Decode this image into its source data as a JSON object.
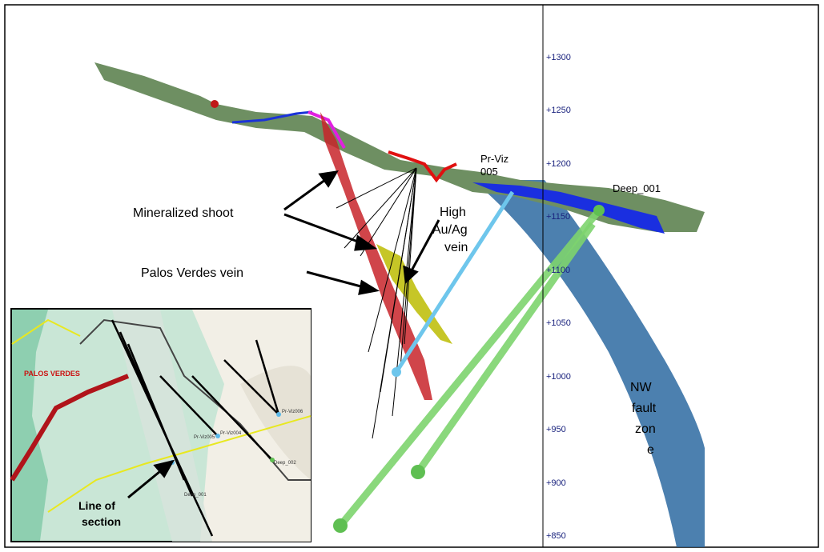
{
  "section": {
    "elevations": [
      "+1300",
      "+1250",
      "+1200",
      "+1150",
      "+1100",
      "+1050",
      "+1000",
      "+950",
      "+900",
      "+850"
    ],
    "labels": {
      "mineralized_shoot": "Mineralized shoot",
      "palos_verdes_vein": "Palos Verdes vein",
      "high_vein": [
        "High",
        "Au/Ag",
        "vein"
      ],
      "pr_viz": [
        "Pr-Viz",
        "005"
      ],
      "deep": "Deep_001",
      "fault": [
        "NW",
        "fault",
        "zon",
        "e"
      ]
    }
  },
  "inset": {
    "title": "PALOS VERDES",
    "line_of_section": [
      "Line of",
      "section"
    ],
    "holes": [
      "Pr-Viz006",
      "Pr-Viz004",
      "Pr-Viz005",
      "Deep_002",
      "Deep_001"
    ]
  }
}
